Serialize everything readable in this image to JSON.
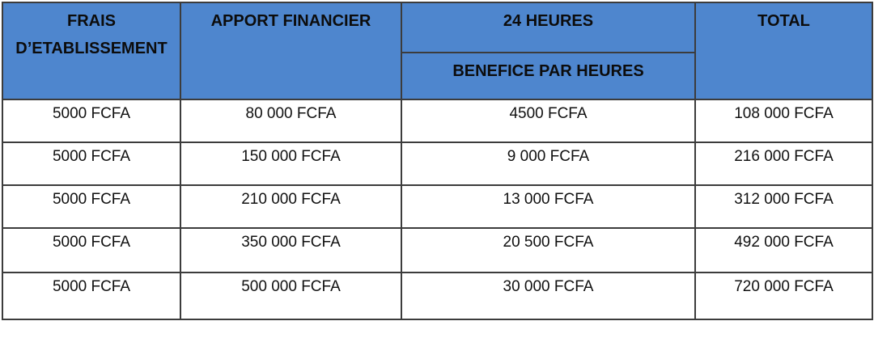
{
  "chart_data": {
    "type": "table",
    "title": "",
    "columns": [
      "FRAIS D’ETABLISSEMENT",
      "APPORT FINANCIER",
      "24 HEURES / BENEFICE PAR HEURES",
      "TOTAL"
    ],
    "rows": [
      [
        "5000 FCFA",
        "80 000 FCFA",
        "4500 FCFA",
        "108 000 FCFA"
      ],
      [
        "5000 FCFA",
        "150 000 FCFA",
        "9 000 FCFA",
        "216 000 FCFA"
      ],
      [
        "5000 FCFA",
        "210 000 FCFA",
        "13 000 FCFA",
        "312 000 FCFA"
      ],
      [
        "5000 FCFA",
        "350 000 FCFA",
        "20 500 FCFA",
        "492 000 FCFA"
      ],
      [
        "5000 FCFA",
        "500 000 FCFA",
        "30 000 FCFA",
        "720 000 FCFA"
      ]
    ]
  },
  "table": {
    "header": {
      "frais": "FRAIS D’ETABLISSEMENT",
      "apport": "APPORT FINANCIER",
      "heures": "24 HEURES",
      "benefice": "BENEFICE PAR HEURES",
      "total": "TOTAL"
    },
    "rows": [
      [
        "5000 FCFA",
        "80 000 FCFA",
        "4500 FCFA",
        "108 000 FCFA"
      ],
      [
        "5000 FCFA",
        "150 000 FCFA",
        "9 000 FCFA",
        "216 000 FCFA"
      ],
      [
        "5000 FCFA",
        "210 000 FCFA",
        "13 000 FCFA",
        "312 000 FCFA"
      ],
      [
        "5000 FCFA",
        "350 000 FCFA",
        "20 500 FCFA",
        "492 000 FCFA"
      ],
      [
        "5000 FCFA",
        "500 000 FCFA",
        "30 000 FCFA",
        "720 000 FCFA"
      ]
    ],
    "colors": {
      "header_bg": "#4e86ce",
      "border": "#3c3c3c",
      "text": "#101010"
    }
  }
}
